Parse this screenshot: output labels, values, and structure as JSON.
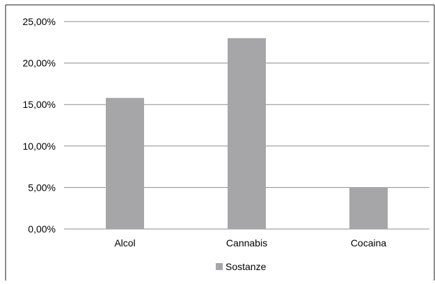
{
  "chart_data": {
    "type": "bar",
    "categories": [
      "Alcol",
      "Cannabis",
      "Cocaina"
    ],
    "series": [
      {
        "name": "Sostanze",
        "values": [
          15.8,
          23.0,
          5.0
        ]
      }
    ],
    "title": "",
    "xlabel": "",
    "ylabel": "",
    "ylim": [
      0,
      25
    ],
    "yticks": [
      0,
      5,
      10,
      15,
      20,
      25
    ],
    "ytick_labels": [
      "0,00%",
      "5,00%",
      "10,00%",
      "15,00%",
      "20,00%",
      "25,00%"
    ],
    "grid": true,
    "legend_position": "bottom",
    "colors": {
      "bar": "#a6a6a8",
      "grid": "#8c8c8c",
      "frame": "#1a1a1a"
    }
  }
}
